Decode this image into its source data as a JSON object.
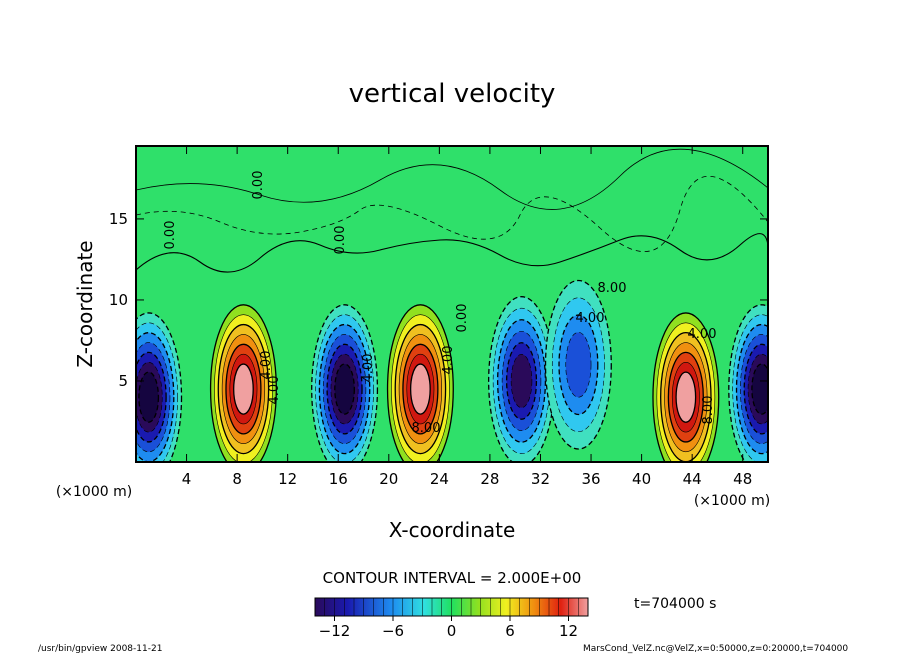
{
  "chart_data": {
    "type": "heatmap",
    "title": "vertical velocity",
    "xlabel": "X-coordinate",
    "ylabel": "Z-coordinate",
    "x_unit_label_left": "(×1000 m)",
    "x_unit_label_right": "(×1000 m)",
    "xlim": [
      0,
      50
    ],
    "ylim": [
      0,
      19.5
    ],
    "xticks": [
      4,
      8,
      12,
      16,
      20,
      24,
      28,
      32,
      36,
      40,
      44,
      48
    ],
    "yticks": [
      5,
      10,
      15
    ],
    "contour_interval_text": "CONTOUR INTERVAL = 2.000E+00",
    "contour_labels": [
      "0.00",
      "0.00",
      "0.00",
      "0.00",
      "4.00",
      "4.00",
      "4.00",
      "4.00",
      "4.00",
      "4.00",
      "8.00",
      "8.00",
      "8.00"
    ],
    "time_text": "t=704000 s",
    "colorbar": {
      "range": [
        -14,
        14
      ],
      "ticks": [
        -12,
        -6,
        0,
        6,
        12
      ],
      "tick_labels": [
        "−12",
        "−6",
        "0",
        "6",
        "12"
      ]
    },
    "footer_left": "/usr/bin/gpview   2008-11-21",
    "footer_right": "MarsCond_VelZ.nc@VelZ,x=0:50000,z=0:20000,t=704000",
    "cells": [
      {
        "x": 1.0,
        "z": 4.0,
        "value": -14
      },
      {
        "x": 8.5,
        "z": 4.5,
        "value": 14
      },
      {
        "x": 16.5,
        "z": 4.5,
        "value": -14
      },
      {
        "x": 22.5,
        "z": 4.5,
        "value": 14
      },
      {
        "x": 30.5,
        "z": 5.0,
        "value": -12
      },
      {
        "x": 35.0,
        "z": 6.0,
        "value": -8
      },
      {
        "x": 43.5,
        "z": 4.0,
        "value": 14
      },
      {
        "x": 49.5,
        "z": 4.5,
        "value": -14
      }
    ]
  }
}
